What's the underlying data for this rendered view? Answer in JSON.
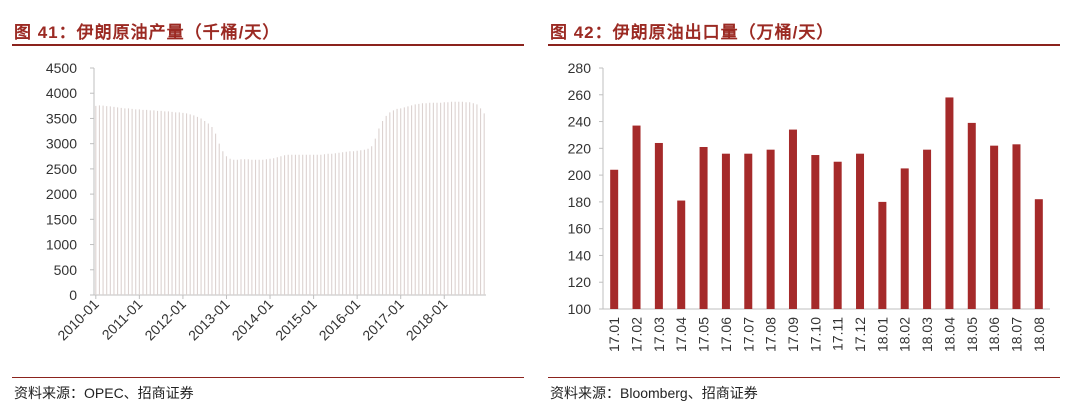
{
  "left": {
    "title": "图 41：伊朗原油产量（千桶/天）",
    "source": "资料来源：OPEC、招商证券",
    "colors": {
      "bar": "#dcd2d0",
      "axis": "#bfbfbf",
      "title": "#9b2a23"
    }
  },
  "right": {
    "title": "图 42：伊朗原油出口量（万桶/天）",
    "source": "资料来源：Bloomberg、招商证券",
    "colors": {
      "bar": "#a52a2a",
      "axis": "#bfbfbf",
      "title": "#9b2a23"
    }
  },
  "chart_data": [
    {
      "type": "bar",
      "title": "图 41：伊朗原油产量（千桶/天）",
      "xlabel": "",
      "ylabel": "",
      "ylim": [
        0,
        4500
      ],
      "yticks": [
        "0",
        "500",
        "1000",
        "1500",
        "2000",
        "2500",
        "3000",
        "3500",
        "4000",
        "4500"
      ],
      "xtick_labels": [
        "2010-01",
        "2011-01",
        "2012-01",
        "2013-01",
        "2014-01",
        "2015-01",
        "2016-01",
        "2017-01",
        "2018-01"
      ],
      "start_month": "2010-01",
      "grid": false,
      "values": [
        3750,
        3760,
        3755,
        3745,
        3740,
        3730,
        3720,
        3710,
        3700,
        3700,
        3690,
        3680,
        3680,
        3670,
        3670,
        3660,
        3660,
        3650,
        3650,
        3640,
        3640,
        3630,
        3620,
        3620,
        3610,
        3600,
        3580,
        3560,
        3530,
        3500,
        3450,
        3400,
        3330,
        3200,
        3000,
        2850,
        2750,
        2700,
        2680,
        2680,
        2690,
        2690,
        2690,
        2680,
        2680,
        2680,
        2680,
        2690,
        2700,
        2710,
        2730,
        2750,
        2770,
        2780,
        2780,
        2780,
        2780,
        2780,
        2780,
        2780,
        2780,
        2780,
        2780,
        2790,
        2800,
        2800,
        2810,
        2820,
        2830,
        2840,
        2850,
        2850,
        2860,
        2870,
        2880,
        2900,
        2950,
        3100,
        3300,
        3450,
        3550,
        3620,
        3660,
        3690,
        3700,
        3720,
        3740,
        3760,
        3780,
        3790,
        3800,
        3800,
        3810,
        3810,
        3810,
        3810,
        3820,
        3820,
        3830,
        3830,
        3830,
        3830,
        3820,
        3820,
        3800,
        3780,
        3700,
        3600
      ]
    },
    {
      "type": "bar",
      "title": "图 42：伊朗原油出口量（万桶/天）",
      "xlabel": "",
      "ylabel": "",
      "ylim": [
        100,
        280
      ],
      "yticks": [
        "100",
        "120",
        "140",
        "160",
        "180",
        "200",
        "220",
        "240",
        "260",
        "280"
      ],
      "categories": [
        "17.01",
        "17.02",
        "17.03",
        "17.04",
        "17.05",
        "17.06",
        "17.07",
        "17.08",
        "17.09",
        "17.10",
        "17.11",
        "17.12",
        "18.01",
        "18.02",
        "18.03",
        "18.04",
        "18.05",
        "18.06",
        "18.07",
        "18.08"
      ],
      "values": [
        204,
        237,
        224,
        181,
        221,
        216,
        216,
        219,
        234,
        215,
        210,
        216,
        180,
        205,
        219,
        258,
        239,
        222,
        223,
        182
      ],
      "grid": false
    }
  ]
}
